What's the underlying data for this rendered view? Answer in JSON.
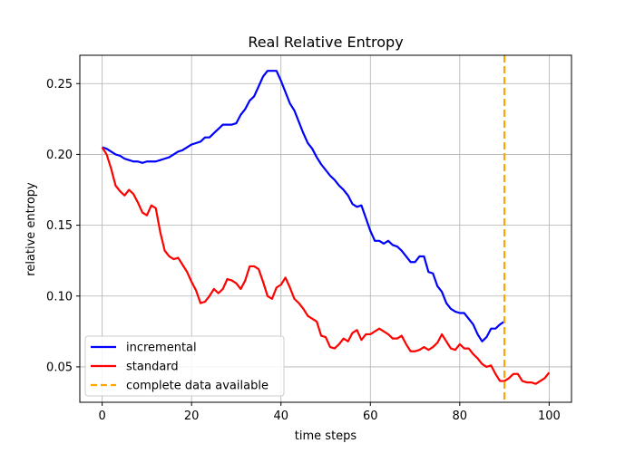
{
  "chart_data": {
    "type": "line",
    "title": "Real Relative Entropy",
    "xlabel": "time steps",
    "ylabel": "relative entropy",
    "xlim": [
      -5,
      105
    ],
    "ylim": [
      0.025,
      0.27
    ],
    "xticks": [
      0,
      20,
      40,
      60,
      80,
      100
    ],
    "yticks": [
      0.05,
      0.1,
      0.15,
      0.2,
      0.25
    ],
    "xtick_labels": [
      "0",
      "20",
      "40",
      "60",
      "80",
      "100"
    ],
    "ytick_labels": [
      "0.05",
      "0.10",
      "0.15",
      "0.20",
      "0.25"
    ],
    "grid": true,
    "legend_position": "lower-left",
    "series": [
      {
        "name": "incremental",
        "color": "#0000ff",
        "x": [
          0,
          1,
          2,
          3,
          4,
          5,
          6,
          7,
          8,
          9,
          10,
          11,
          12,
          13,
          14,
          15,
          16,
          17,
          18,
          19,
          20,
          21,
          22,
          23,
          24,
          25,
          26,
          27,
          28,
          29,
          30,
          31,
          32,
          33,
          34,
          35,
          36,
          37,
          38,
          39,
          40,
          41,
          42,
          43,
          44,
          45,
          46,
          47,
          48,
          49,
          50,
          51,
          52,
          53,
          54,
          55,
          56,
          57,
          58,
          59,
          60,
          61,
          62,
          63,
          64,
          65,
          66,
          67,
          68,
          69,
          70,
          71,
          72,
          73,
          74,
          75,
          76,
          77,
          78,
          79,
          80,
          81,
          82,
          83,
          84,
          85,
          86,
          87,
          88,
          89,
          90
        ],
        "y": [
          0.205,
          0.204,
          0.202,
          0.2,
          0.199,
          0.197,
          0.196,
          0.195,
          0.195,
          0.194,
          0.195,
          0.195,
          0.195,
          0.196,
          0.197,
          0.198,
          0.2,
          0.202,
          0.203,
          0.205,
          0.207,
          0.208,
          0.209,
          0.212,
          0.212,
          0.215,
          0.218,
          0.221,
          0.221,
          0.221,
          0.222,
          0.228,
          0.232,
          0.238,
          0.241,
          0.248,
          0.255,
          0.259,
          0.259,
          0.259,
          0.252,
          0.244,
          0.236,
          0.231,
          0.223,
          0.215,
          0.208,
          0.204,
          0.198,
          0.193,
          0.189,
          0.185,
          0.182,
          0.178,
          0.175,
          0.171,
          0.165,
          0.163,
          0.164,
          0.155,
          0.146,
          0.139,
          0.139,
          0.137,
          0.139,
          0.136,
          0.135,
          0.132,
          0.128,
          0.124,
          0.124,
          0.128,
          0.128,
          0.117,
          0.116,
          0.107,
          0.103,
          0.095,
          0.091,
          0.089,
          0.088,
          0.088,
          0.084,
          0.08,
          0.073,
          0.068,
          0.071,
          0.077,
          0.077,
          0.08,
          0.082
        ]
      },
      {
        "name": "standard",
        "color": "#ff0000",
        "x": [
          0,
          1,
          2,
          3,
          4,
          5,
          6,
          7,
          8,
          9,
          10,
          11,
          12,
          13,
          14,
          15,
          16,
          17,
          18,
          19,
          20,
          21,
          22,
          23,
          24,
          25,
          26,
          27,
          28,
          29,
          30,
          31,
          32,
          33,
          34,
          35,
          36,
          37,
          38,
          39,
          40,
          41,
          42,
          43,
          44,
          45,
          46,
          47,
          48,
          49,
          50,
          51,
          52,
          53,
          54,
          55,
          56,
          57,
          58,
          59,
          60,
          61,
          62,
          63,
          64,
          65,
          66,
          67,
          68,
          69,
          70,
          71,
          72,
          73,
          74,
          75,
          76,
          77,
          78,
          79,
          80,
          81,
          82,
          83,
          84,
          85,
          86,
          87,
          88,
          89,
          90,
          91,
          92,
          93,
          94,
          95,
          96,
          97,
          98,
          99,
          100
        ],
        "y": [
          0.205,
          0.2,
          0.19,
          0.178,
          0.174,
          0.171,
          0.175,
          0.172,
          0.166,
          0.159,
          0.157,
          0.164,
          0.162,
          0.145,
          0.132,
          0.128,
          0.126,
          0.127,
          0.122,
          0.117,
          0.11,
          0.104,
          0.095,
          0.096,
          0.1,
          0.105,
          0.102,
          0.105,
          0.112,
          0.111,
          0.109,
          0.105,
          0.111,
          0.121,
          0.121,
          0.119,
          0.11,
          0.1,
          0.098,
          0.106,
          0.108,
          0.113,
          0.106,
          0.098,
          0.095,
          0.091,
          0.086,
          0.084,
          0.082,
          0.072,
          0.071,
          0.064,
          0.063,
          0.066,
          0.07,
          0.068,
          0.074,
          0.076,
          0.069,
          0.073,
          0.073,
          0.075,
          0.077,
          0.075,
          0.073,
          0.07,
          0.07,
          0.072,
          0.066,
          0.061,
          0.061,
          0.062,
          0.064,
          0.062,
          0.064,
          0.067,
          0.073,
          0.068,
          0.063,
          0.062,
          0.066,
          0.063,
          0.063,
          0.059,
          0.056,
          0.052,
          0.05,
          0.051,
          0.045,
          0.04,
          0.04,
          0.042,
          0.045,
          0.045,
          0.04,
          0.039,
          0.039,
          0.038,
          0.04,
          0.042,
          0.046
        ]
      }
    ],
    "vlines": [
      {
        "name": "complete data available",
        "x": 90,
        "color": "#ffa500",
        "style": "dashed"
      }
    ]
  }
}
